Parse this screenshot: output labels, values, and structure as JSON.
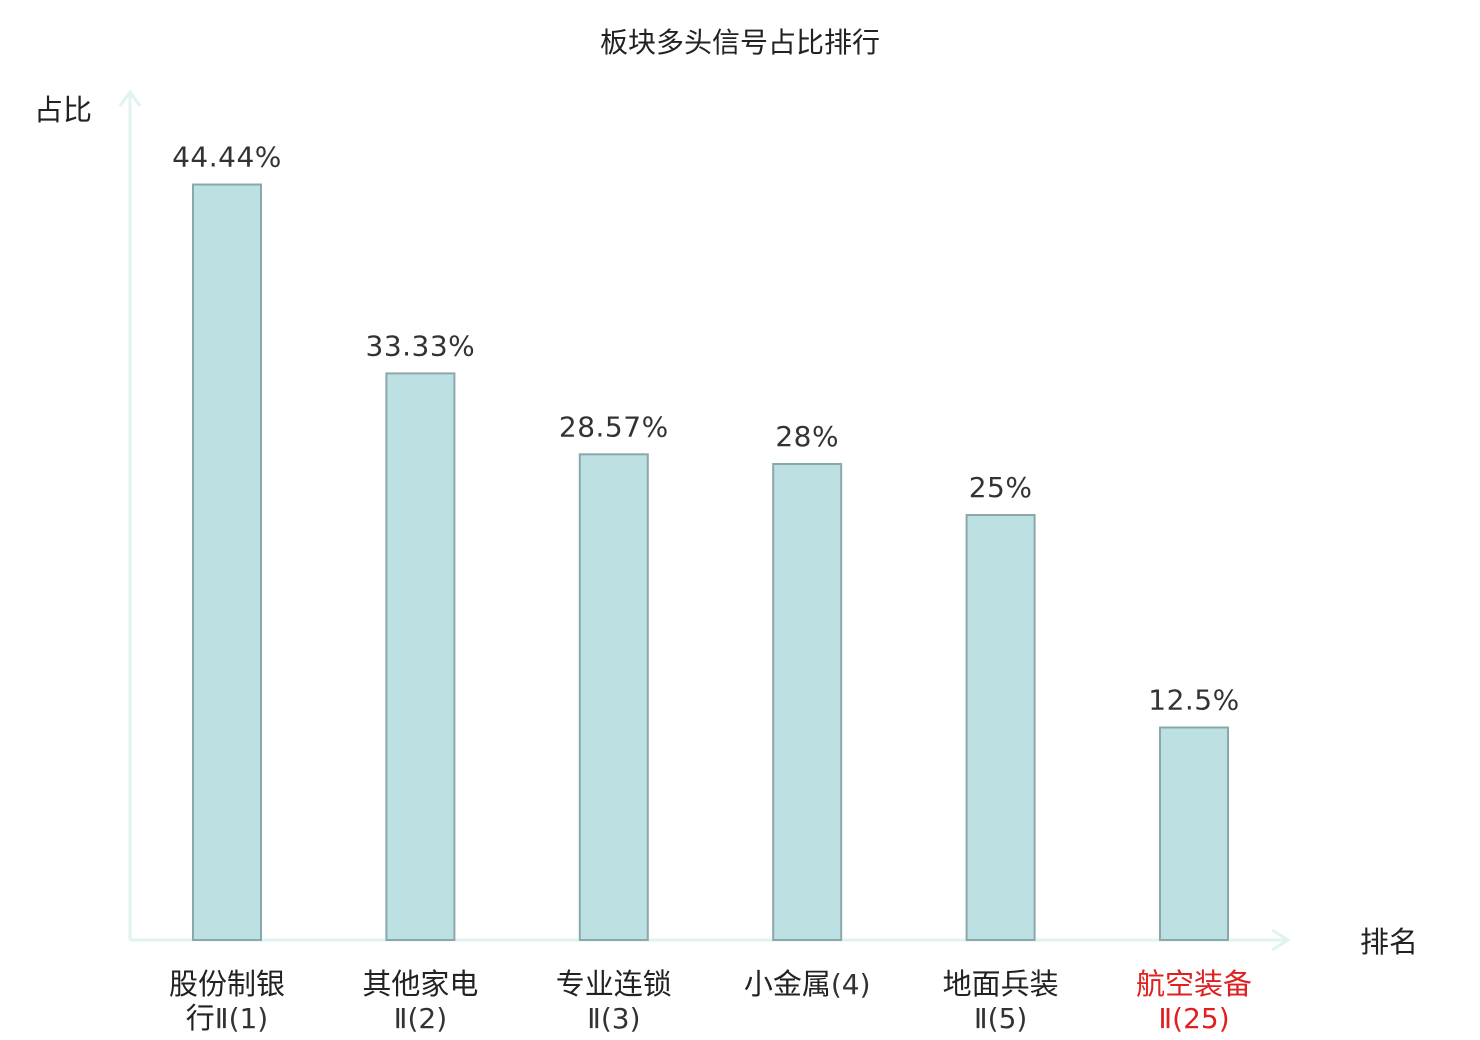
{
  "chart_data": {
    "type": "bar",
    "title": "板块多头信号占比排行",
    "ylabel": "占比",
    "xlabel": "排名",
    "ylim": [
      0,
      50
    ],
    "grid": false,
    "categories": [
      {
        "name": "股份制银行",
        "rank": "Ⅱ(1)",
        "value": 44.44,
        "label": "44.44%",
        "highlight": false
      },
      {
        "name": "其他家电",
        "rank": "Ⅱ(2)",
        "value": 33.33,
        "label": "33.33%",
        "highlight": false
      },
      {
        "name": "专业连锁",
        "rank": "Ⅱ(3)",
        "value": 28.57,
        "label": "28.57%",
        "highlight": false
      },
      {
        "name": "小金属",
        "rank": "(4)",
        "value": 28,
        "label": "28%",
        "highlight": false
      },
      {
        "name": "地面兵装",
        "rank": "Ⅱ(5)",
        "value": 25,
        "label": "25%",
        "highlight": false
      },
      {
        "name": "航空装备",
        "rank": "Ⅱ(25)",
        "value": 12.5,
        "label": "12.5%",
        "highlight": true
      }
    ],
    "colors": {
      "bar_fill": "#bde0e2",
      "bar_stroke": "#8aa8aa",
      "axis": "#e0f3f1",
      "text": "#222222",
      "value_text": "#333333",
      "highlight": "#e02020"
    }
  }
}
